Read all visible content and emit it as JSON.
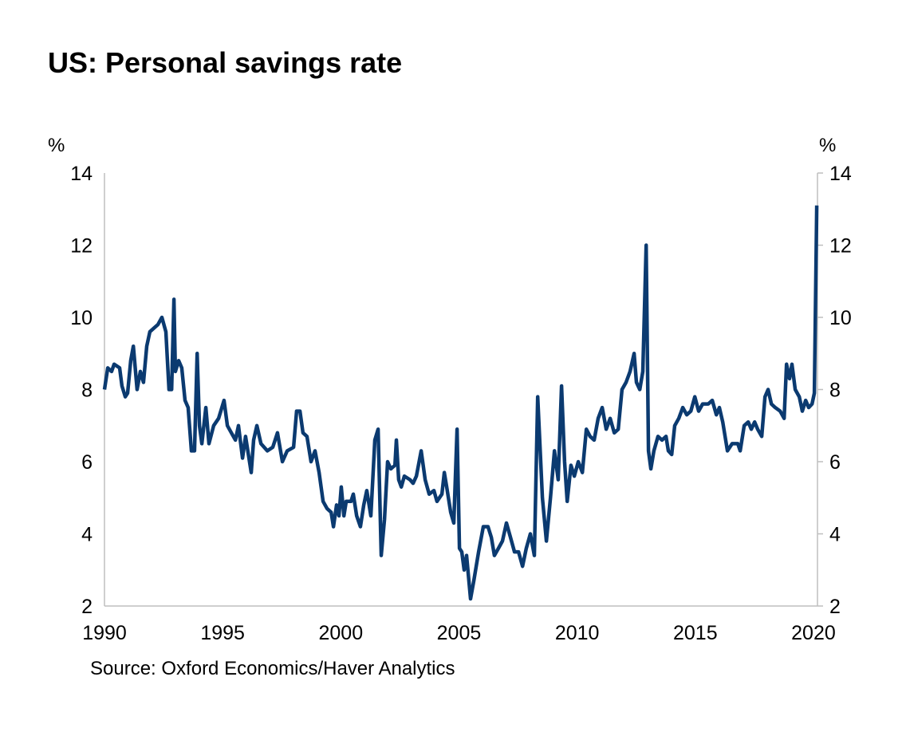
{
  "chart_data": {
    "type": "line",
    "title": "US: Personal savings rate",
    "ylabel_left": "%",
    "ylabel_right": "%",
    "source": "Source: Oxford Economics/Haver Analytics",
    "xlim": [
      1990,
      2020.17
    ],
    "ylim": [
      2,
      14
    ],
    "x_ticks": [
      1990,
      1995,
      2000,
      2005,
      2010,
      2015,
      2020
    ],
    "y_ticks": [
      2,
      4,
      6,
      8,
      10,
      12,
      14
    ],
    "grid": false,
    "legend": "none",
    "line_color": "#0b3a70",
    "axis_color": "#bfbfbf",
    "series": [
      {
        "points": [
          [
            1990.0,
            8.0
          ],
          [
            1990.14,
            8.6
          ],
          [
            1990.3,
            8.5
          ],
          [
            1990.41,
            8.7
          ],
          [
            1990.64,
            8.6
          ],
          [
            1990.74,
            8.1
          ],
          [
            1990.88,
            7.8
          ],
          [
            1990.98,
            7.9
          ],
          [
            1991.11,
            8.8
          ],
          [
            1991.22,
            9.2
          ],
          [
            1991.38,
            8.0
          ],
          [
            1991.52,
            8.5
          ],
          [
            1991.65,
            8.2
          ],
          [
            1991.79,
            9.2
          ],
          [
            1991.92,
            9.6
          ],
          [
            1992.09,
            9.7
          ],
          [
            1992.26,
            9.8
          ],
          [
            1992.43,
            10.0
          ],
          [
            1992.6,
            9.6
          ],
          [
            1992.73,
            8.0
          ],
          [
            1992.84,
            8.0
          ],
          [
            1992.94,
            10.5
          ],
          [
            1993.0,
            8.5
          ],
          [
            1993.14,
            8.8
          ],
          [
            1993.27,
            8.6
          ],
          [
            1993.41,
            7.7
          ],
          [
            1993.54,
            7.5
          ],
          [
            1993.68,
            6.3
          ],
          [
            1993.81,
            6.3
          ],
          [
            1993.92,
            9.0
          ],
          [
            1994.02,
            7.0
          ],
          [
            1994.12,
            6.5
          ],
          [
            1994.29,
            7.5
          ],
          [
            1994.42,
            6.5
          ],
          [
            1994.62,
            7.0
          ],
          [
            1994.83,
            7.2
          ],
          [
            1995.06,
            7.7
          ],
          [
            1995.2,
            7.0
          ],
          [
            1995.37,
            6.8
          ],
          [
            1995.54,
            6.6
          ],
          [
            1995.67,
            7.0
          ],
          [
            1995.84,
            6.1
          ],
          [
            1995.97,
            6.7
          ],
          [
            1996.21,
            5.7
          ],
          [
            1996.31,
            6.6
          ],
          [
            1996.45,
            7.0
          ],
          [
            1996.62,
            6.5
          ],
          [
            1996.89,
            6.3
          ],
          [
            1997.12,
            6.4
          ],
          [
            1997.32,
            6.8
          ],
          [
            1997.53,
            6.0
          ],
          [
            1997.73,
            6.3
          ],
          [
            1998.0,
            6.4
          ],
          [
            1998.13,
            7.4
          ],
          [
            1998.27,
            7.4
          ],
          [
            1998.4,
            6.8
          ],
          [
            1998.57,
            6.7
          ],
          [
            1998.74,
            6.0
          ],
          [
            1998.91,
            6.3
          ],
          [
            1999.08,
            5.7
          ],
          [
            1999.25,
            4.9
          ],
          [
            1999.42,
            4.7
          ],
          [
            1999.59,
            4.6
          ],
          [
            1999.69,
            4.2
          ],
          [
            1999.82,
            4.8
          ],
          [
            1999.92,
            4.5
          ],
          [
            2000.02,
            5.3
          ],
          [
            2000.13,
            4.5
          ],
          [
            2000.23,
            4.9
          ],
          [
            2000.43,
            4.9
          ],
          [
            2000.53,
            5.1
          ],
          [
            2000.67,
            4.5
          ],
          [
            2000.83,
            4.2
          ],
          [
            2000.97,
            4.8
          ],
          [
            2001.1,
            5.2
          ],
          [
            2001.27,
            4.5
          ],
          [
            2001.44,
            6.6
          ],
          [
            2001.58,
            6.9
          ],
          [
            2001.71,
            3.4
          ],
          [
            2001.85,
            4.4
          ],
          [
            2001.98,
            6.0
          ],
          [
            2002.12,
            5.8
          ],
          [
            2002.29,
            5.9
          ],
          [
            2002.35,
            6.6
          ],
          [
            2002.45,
            5.5
          ],
          [
            2002.56,
            5.3
          ],
          [
            2002.69,
            5.6
          ],
          [
            2002.93,
            5.5
          ],
          [
            2003.06,
            5.4
          ],
          [
            2003.2,
            5.6
          ],
          [
            2003.4,
            6.3
          ],
          [
            2003.57,
            5.5
          ],
          [
            2003.74,
            5.1
          ],
          [
            2003.94,
            5.2
          ],
          [
            2004.07,
            4.9
          ],
          [
            2004.28,
            5.1
          ],
          [
            2004.38,
            5.7
          ],
          [
            2004.48,
            5.3
          ],
          [
            2004.65,
            4.6
          ],
          [
            2004.78,
            4.3
          ],
          [
            2004.92,
            6.9
          ],
          [
            2005.02,
            3.6
          ],
          [
            2005.12,
            3.5
          ],
          [
            2005.22,
            3.0
          ],
          [
            2005.32,
            3.4
          ],
          [
            2005.49,
            2.2
          ],
          [
            2005.63,
            2.7
          ],
          [
            2005.83,
            3.5
          ],
          [
            2006.03,
            4.2
          ],
          [
            2006.23,
            4.2
          ],
          [
            2006.37,
            3.9
          ],
          [
            2006.5,
            3.4
          ],
          [
            2006.67,
            3.6
          ],
          [
            2006.84,
            3.8
          ],
          [
            2007.01,
            4.3
          ],
          [
            2007.18,
            3.9
          ],
          [
            2007.35,
            3.5
          ],
          [
            2007.52,
            3.5
          ],
          [
            2007.69,
            3.1
          ],
          [
            2007.85,
            3.6
          ],
          [
            2008.02,
            4.0
          ],
          [
            2008.19,
            3.4
          ],
          [
            2008.33,
            7.8
          ],
          [
            2008.53,
            5.0
          ],
          [
            2008.7,
            3.8
          ],
          [
            2008.87,
            5.0
          ],
          [
            2009.04,
            6.3
          ],
          [
            2009.2,
            5.5
          ],
          [
            2009.34,
            8.1
          ],
          [
            2009.47,
            6.0
          ],
          [
            2009.58,
            4.9
          ],
          [
            2009.74,
            5.9
          ],
          [
            2009.88,
            5.6
          ],
          [
            2010.05,
            6.0
          ],
          [
            2010.22,
            5.7
          ],
          [
            2010.39,
            6.9
          ],
          [
            2010.55,
            6.7
          ],
          [
            2010.72,
            6.6
          ],
          [
            2010.89,
            7.2
          ],
          [
            2011.06,
            7.5
          ],
          [
            2011.23,
            6.9
          ],
          [
            2011.4,
            7.2
          ],
          [
            2011.57,
            6.8
          ],
          [
            2011.74,
            6.9
          ],
          [
            2011.9,
            8.0
          ],
          [
            2012.07,
            8.2
          ],
          [
            2012.24,
            8.5
          ],
          [
            2012.41,
            9.0
          ],
          [
            2012.51,
            8.2
          ],
          [
            2012.65,
            8.0
          ],
          [
            2012.78,
            8.5
          ],
          [
            2012.92,
            12.0
          ],
          [
            2013.02,
            6.3
          ],
          [
            2013.12,
            5.8
          ],
          [
            2013.25,
            6.3
          ],
          [
            2013.42,
            6.7
          ],
          [
            2013.59,
            6.6
          ],
          [
            2013.76,
            6.7
          ],
          [
            2013.86,
            6.3
          ],
          [
            2014.0,
            6.2
          ],
          [
            2014.13,
            7.0
          ],
          [
            2014.3,
            7.2
          ],
          [
            2014.47,
            7.5
          ],
          [
            2014.64,
            7.3
          ],
          [
            2014.81,
            7.4
          ],
          [
            2014.98,
            7.8
          ],
          [
            2015.14,
            7.4
          ],
          [
            2015.31,
            7.6
          ],
          [
            2015.55,
            7.6
          ],
          [
            2015.72,
            7.7
          ],
          [
            2015.89,
            7.3
          ],
          [
            2016.02,
            7.5
          ],
          [
            2016.16,
            7.1
          ],
          [
            2016.36,
            6.3
          ],
          [
            2016.56,
            6.5
          ],
          [
            2016.8,
            6.5
          ],
          [
            2016.9,
            6.3
          ],
          [
            2017.07,
            7.0
          ],
          [
            2017.24,
            7.1
          ],
          [
            2017.37,
            6.9
          ],
          [
            2017.51,
            7.1
          ],
          [
            2017.64,
            6.9
          ],
          [
            2017.81,
            6.7
          ],
          [
            2017.95,
            7.8
          ],
          [
            2018.08,
            8.0
          ],
          [
            2018.22,
            7.6
          ],
          [
            2018.38,
            7.5
          ],
          [
            2018.59,
            7.4
          ],
          [
            2018.76,
            7.2
          ],
          [
            2018.86,
            8.7
          ],
          [
            2018.99,
            8.3
          ],
          [
            2019.09,
            8.7
          ],
          [
            2019.23,
            8.0
          ],
          [
            2019.4,
            7.8
          ],
          [
            2019.53,
            7.4
          ],
          [
            2019.67,
            7.7
          ],
          [
            2019.8,
            7.5
          ],
          [
            2019.94,
            7.6
          ],
          [
            2020.04,
            7.9
          ],
          [
            2020.14,
            13.1
          ]
        ]
      }
    ]
  }
}
